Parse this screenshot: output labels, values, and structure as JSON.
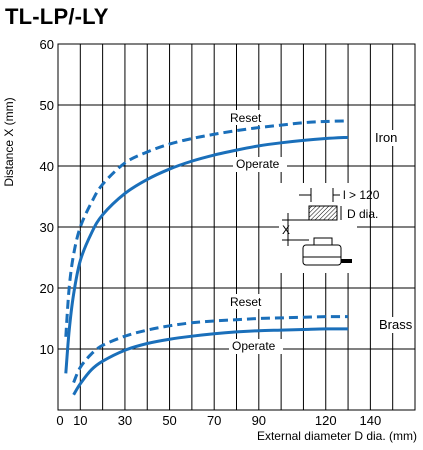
{
  "title": "TL-LP/-LY",
  "chart_data": {
    "type": "line",
    "title": "TL-LP/-LY",
    "xlabel": "External diameter D dia. (mm)",
    "ylabel": "Distance X (mm)",
    "xlim": [
      0,
      160
    ],
    "ylim": [
      0,
      60
    ],
    "x_tick_labels": [
      "0",
      "10",
      "30",
      "50",
      "70",
      "90",
      "120",
      "140"
    ],
    "y_tick_labels": [
      "10",
      "20",
      "30",
      "40",
      "50",
      "60"
    ],
    "grid": true,
    "series": [
      {
        "name": "Iron Reset",
        "color": "#1a6fba",
        "dash": true,
        "points": [
          [
            3.5,
            12
          ],
          [
            5,
            20
          ],
          [
            7,
            25.5
          ],
          [
            10,
            30
          ],
          [
            15,
            34
          ],
          [
            20,
            37
          ],
          [
            30,
            40.5
          ],
          [
            40,
            42.3
          ],
          [
            50,
            43.6
          ],
          [
            60,
            44.5
          ],
          [
            70,
            45.2
          ],
          [
            80,
            45.8
          ],
          [
            90,
            46.3
          ],
          [
            100,
            46.7
          ],
          [
            110,
            47.1
          ],
          [
            120,
            47.3
          ],
          [
            130,
            47.4
          ]
        ]
      },
      {
        "name": "Iron Operate",
        "color": "#1a6fba",
        "dash": false,
        "points": [
          [
            3.5,
            6
          ],
          [
            5,
            13
          ],
          [
            7,
            19
          ],
          [
            10,
            24.5
          ],
          [
            15,
            29
          ],
          [
            20,
            32
          ],
          [
            30,
            35.5
          ],
          [
            40,
            37.8
          ],
          [
            50,
            39.5
          ],
          [
            60,
            40.8
          ],
          [
            70,
            41.8
          ],
          [
            80,
            42.6
          ],
          [
            90,
            43.3
          ],
          [
            100,
            43.8
          ],
          [
            110,
            44.2
          ],
          [
            120,
            44.5
          ],
          [
            130,
            44.7
          ]
        ]
      },
      {
        "name": "Brass Reset",
        "color": "#1a6fba",
        "dash": true,
        "points": [
          [
            7,
            4.5
          ],
          [
            10,
            7
          ],
          [
            15,
            9.2
          ],
          [
            20,
            10.6
          ],
          [
            30,
            12.1
          ],
          [
            40,
            13.1
          ],
          [
            50,
            13.8
          ],
          [
            60,
            14.3
          ],
          [
            70,
            14.6
          ],
          [
            80,
            14.8
          ],
          [
            90,
            15
          ],
          [
            100,
            15.1
          ],
          [
            110,
            15.2
          ],
          [
            120,
            15.3
          ],
          [
            130,
            15.3
          ]
        ]
      },
      {
        "name": "Brass Operate",
        "color": "#1a6fba",
        "dash": false,
        "points": [
          [
            7,
            2.5
          ],
          [
            10,
            4.3
          ],
          [
            15,
            6.6
          ],
          [
            20,
            8
          ],
          [
            30,
            9.8
          ],
          [
            40,
            10.9
          ],
          [
            50,
            11.6
          ],
          [
            60,
            12.1
          ],
          [
            70,
            12.5
          ],
          [
            80,
            12.8
          ],
          [
            90,
            13
          ],
          [
            100,
            13.1
          ],
          [
            110,
            13.2
          ],
          [
            120,
            13.3
          ],
          [
            130,
            13.3
          ]
        ]
      }
    ],
    "annotations": {
      "iron_reset": "Reset",
      "iron_operate": "Operate",
      "iron": "Iron",
      "brass_reset": "Reset",
      "brass_operate": "Operate",
      "brass": "Brass",
      "inset_l": "l > 120",
      "inset_d": "D dia.",
      "inset_x": "X"
    }
  }
}
